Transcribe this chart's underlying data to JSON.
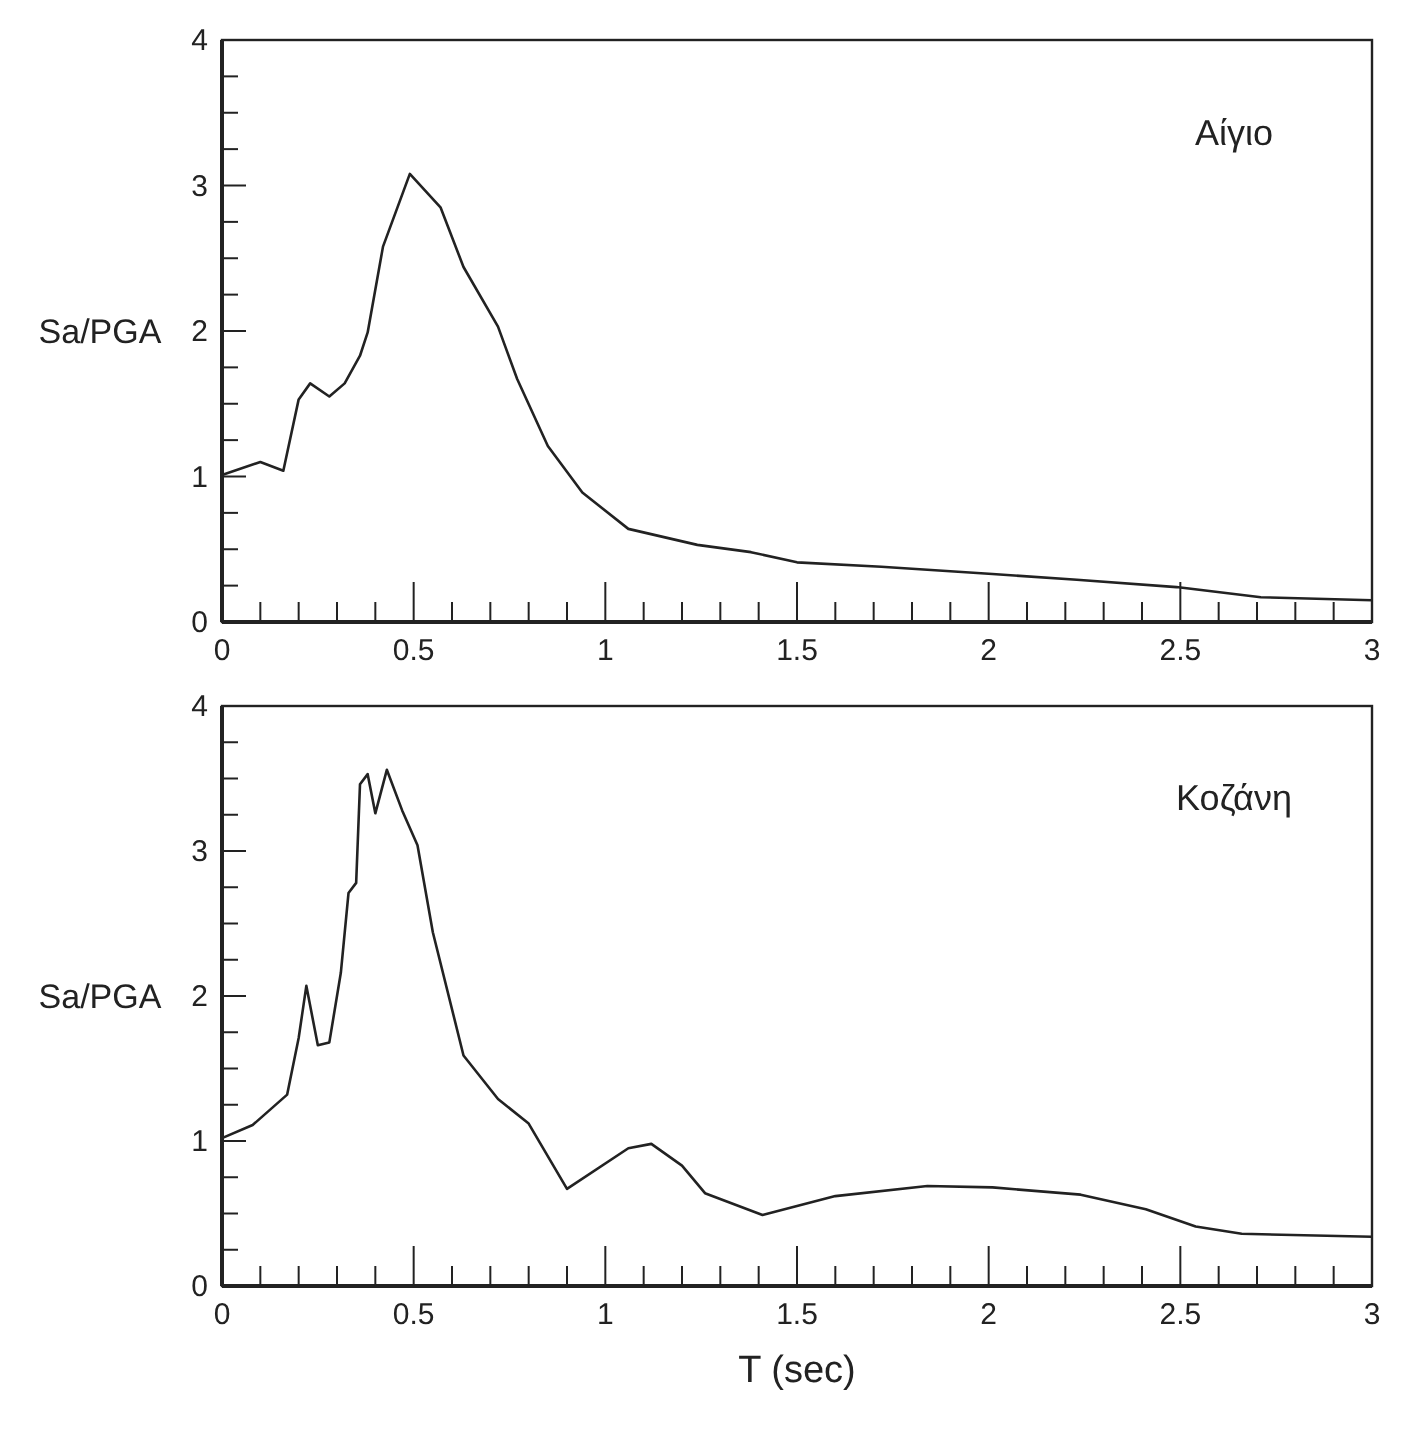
{
  "chart_data": [
    {
      "type": "line",
      "ylabel": "Sa/PGA",
      "annotations": [
        "Αίγιο"
      ],
      "xlim": [
        0,
        3
      ],
      "ylim": [
        0,
        4
      ],
      "marker": "none",
      "line_style": "solid",
      "grid": false,
      "xticks": [
        0,
        {
          "value": 0.1,
          "label": null
        },
        {
          "value": 0.2,
          "label": null
        },
        {
          "value": 0.3,
          "label": null
        },
        {
          "value": 0.4,
          "label": null
        },
        0.5,
        {
          "value": 0.6,
          "label": null
        },
        {
          "value": 0.7,
          "label": null
        },
        {
          "value": 0.8,
          "label": null
        },
        {
          "value": 0.9,
          "label": null
        },
        1,
        {
          "value": 1.1,
          "label": null
        },
        {
          "value": 1.2,
          "label": null
        },
        {
          "value": 1.3,
          "label": null
        },
        {
          "value": 1.4,
          "label": null
        },
        1.5,
        {
          "value": 1.6,
          "label": null
        },
        {
          "value": 1.7,
          "label": null
        },
        {
          "value": 1.8,
          "label": null
        },
        {
          "value": 1.9,
          "label": null
        },
        2,
        {
          "value": 2.1,
          "label": null
        },
        {
          "value": 2.2,
          "label": null
        },
        {
          "value": 2.3,
          "label": null
        },
        {
          "value": 2.4,
          "label": null
        },
        2.5,
        {
          "value": 2.6,
          "label": null
        },
        {
          "value": 2.7,
          "label": null
        },
        {
          "value": 2.8,
          "label": null
        },
        {
          "value": 2.9,
          "label": null
        },
        3
      ],
      "yticks": [
        0,
        {
          "value": 0.25,
          "label": null
        },
        {
          "value": 0.5,
          "label": null
        },
        {
          "value": 0.75,
          "label": null
        },
        1,
        {
          "value": 1.25,
          "label": null
        },
        {
          "value": 1.5,
          "label": null
        },
        {
          "value": 1.75,
          "label": null
        },
        2,
        {
          "value": 2.25,
          "label": null
        },
        {
          "value": 2.5,
          "label": null
        },
        {
          "value": 2.75,
          "label": null
        },
        3,
        {
          "value": 3.25,
          "label": null
        },
        {
          "value": 3.5,
          "label": null
        },
        {
          "value": 3.75,
          "label": null
        },
        4
      ],
      "series": [
        {
          "color": "#222222",
          "x": [
            0,
            0.1,
            0.16,
            0.2,
            0.23,
            0.28,
            0.32,
            0.36,
            0.38,
            0.42,
            0.49,
            0.57,
            0.63,
            0.72,
            0.77,
            0.85,
            0.94,
            1.06,
            1.24,
            1.38,
            1.5,
            1.72,
            2.01,
            2.23,
            2.49,
            2.71,
            3
          ],
          "values": [
            1.01,
            1.1,
            1.04,
            1.53,
            1.64,
            1.55,
            1.64,
            1.83,
            1.99,
            2.58,
            3.08,
            2.85,
            2.44,
            2.03,
            1.67,
            1.21,
            0.89,
            0.64,
            0.53,
            0.48,
            0.41,
            0.38,
            0.33,
            0.29,
            0.24,
            0.17,
            0.15
          ]
        }
      ]
    },
    {
      "type": "line",
      "xlabel": "T (sec)",
      "ylabel": "Sa/PGA",
      "annotations": [
        "Κοζάνη"
      ],
      "xlim": [
        0,
        3
      ],
      "ylim": [
        0,
        4
      ],
      "marker": "none",
      "line_style": "solid",
      "grid": false,
      "xticks": [
        0,
        {
          "value": 0.1,
          "label": null
        },
        {
          "value": 0.2,
          "label": null
        },
        {
          "value": 0.3,
          "label": null
        },
        {
          "value": 0.4,
          "label": null
        },
        0.5,
        {
          "value": 0.6,
          "label": null
        },
        {
          "value": 0.7,
          "label": null
        },
        {
          "value": 0.8,
          "label": null
        },
        {
          "value": 0.9,
          "label": null
        },
        1,
        {
          "value": 1.1,
          "label": null
        },
        {
          "value": 1.2,
          "label": null
        },
        {
          "value": 1.3,
          "label": null
        },
        {
          "value": 1.4,
          "label": null
        },
        1.5,
        {
          "value": 1.6,
          "label": null
        },
        {
          "value": 1.7,
          "label": null
        },
        {
          "value": 1.8,
          "label": null
        },
        {
          "value": 1.9,
          "label": null
        },
        2,
        {
          "value": 2.1,
          "label": null
        },
        {
          "value": 2.2,
          "label": null
        },
        {
          "value": 2.3,
          "label": null
        },
        {
          "value": 2.4,
          "label": null
        },
        2.5,
        {
          "value": 2.6,
          "label": null
        },
        {
          "value": 2.7,
          "label": null
        },
        {
          "value": 2.8,
          "label": null
        },
        {
          "value": 2.9,
          "label": null
        },
        3
      ],
      "yticks": [
        0,
        {
          "value": 0.25,
          "label": null
        },
        {
          "value": 0.5,
          "label": null
        },
        {
          "value": 0.75,
          "label": null
        },
        1,
        {
          "value": 1.25,
          "label": null
        },
        {
          "value": 1.5,
          "label": null
        },
        {
          "value": 1.75,
          "label": null
        },
        2,
        {
          "value": 2.25,
          "label": null
        },
        {
          "value": 2.5,
          "label": null
        },
        {
          "value": 2.75,
          "label": null
        },
        3,
        {
          "value": 3.25,
          "label": null
        },
        {
          "value": 3.5,
          "label": null
        },
        {
          "value": 3.75,
          "label": null
        },
        4
      ],
      "series": [
        {
          "color": "#222222",
          "x": [
            0,
            0.08,
            0.17,
            0.2,
            0.22,
            0.25,
            0.28,
            0.31,
            0.33,
            0.35,
            0.36,
            0.38,
            0.4,
            0.43,
            0.47,
            0.51,
            0.55,
            0.63,
            0.72,
            0.8,
            0.9,
            1.06,
            1.12,
            1.2,
            1.26,
            1.41,
            1.6,
            1.84,
            2.01,
            2.24,
            2.41,
            2.54,
            2.66,
            3
          ],
          "values": [
            1.02,
            1.11,
            1.32,
            1.71,
            2.07,
            1.66,
            1.68,
            2.16,
            2.71,
            2.78,
            3.46,
            3.53,
            3.26,
            3.56,
            3.28,
            3.04,
            2.44,
            1.59,
            1.29,
            1.12,
            0.67,
            0.95,
            0.98,
            0.83,
            0.64,
            0.49,
            0.62,
            0.69,
            0.68,
            0.63,
            0.53,
            0.41,
            0.36,
            0.34
          ]
        }
      ]
    }
  ]
}
